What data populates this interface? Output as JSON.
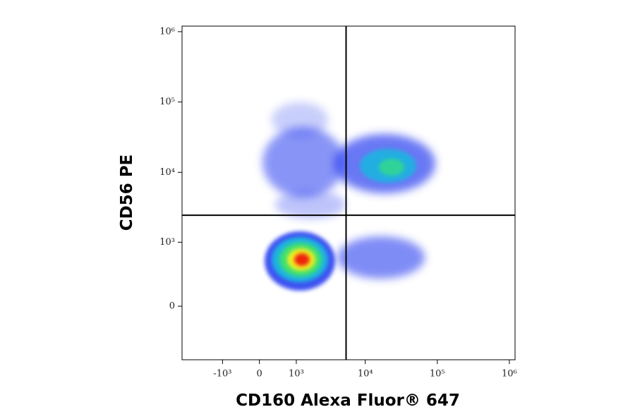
{
  "chart_data": {
    "type": "scatter",
    "x_label": "CD160 Alexa Fluor® 647",
    "y_label": "CD56 PE",
    "xscale": "biexponential",
    "yscale": "biexponential",
    "xlim": [
      -4000,
      1200000
    ],
    "ylim": [
      -700,
      1200000
    ],
    "xticks": [
      {
        "value": -1000,
        "label": "-10³"
      },
      0,
      {
        "value": 1000,
        "label": "10³"
      },
      {
        "value": 10000,
        "label": "10⁴"
      },
      {
        "value": 100000,
        "label": "10⁵"
      },
      {
        "value": 1000000,
        "label": "10⁶"
      }
    ],
    "yticks": [
      0,
      {
        "value": 1000,
        "label": "10³"
      },
      {
        "value": 10000,
        "label": "10⁴"
      },
      {
        "value": 100000,
        "label": "10⁵"
      },
      {
        "value": 1000000,
        "label": "10⁶"
      }
    ],
    "quadrant_x": 5400,
    "quadrant_y": 2450
  }
}
